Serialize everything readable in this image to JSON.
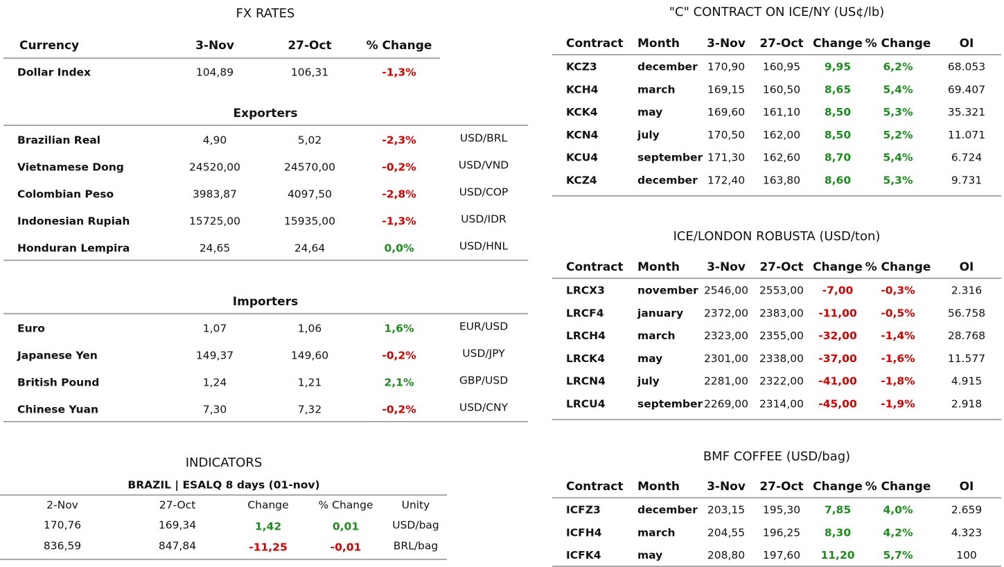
{
  "fx_rates": {
    "title": "FX RATES",
    "header": [
      "Currency",
      "3-Nov",
      "27-Oct",
      "% Change"
    ],
    "dollar_index": [
      "Dollar Index",
      "104,89",
      "106,31",
      "-1,3%"
    ],
    "exporters": {
      "title": "Exporters",
      "rows": [
        [
          "Brazilian Real",
          "4,90",
          "5,02",
          "-2,3%",
          "USD/BRL"
        ],
        [
          "Vietnamese Dong",
          "24520,00",
          "24570,00",
          "-0,2%",
          "USD/VND"
        ],
        [
          "Colombian Peso",
          "3983,87",
          "4097,50",
          "-2,8%",
          "USD/COP"
        ],
        [
          "Indonesian Rupiah",
          "15725,00",
          "15935,00",
          "-1,3%",
          "USD/IDR"
        ],
        [
          "Honduran Lempira",
          "24,65",
          "24,64",
          "0,0%",
          "USD/HNL"
        ]
      ]
    },
    "importers": {
      "title": "Importers",
      "rows": [
        [
          "Euro",
          "1,07",
          "1,06",
          "1,6%",
          "EUR/USD"
        ],
        [
          "Japanese Yen",
          "149,37",
          "149,60",
          "-0,2%",
          "USD/JPY"
        ],
        [
          "British Pound",
          "1,24",
          "1,21",
          "2,1%",
          "GBP/USD"
        ],
        [
          "Chinese Yuan",
          "7,30",
          "7,32",
          "-0,2%",
          "USD/CNY"
        ]
      ]
    }
  },
  "indicators": {
    "title": "INDICATORS",
    "subtitle": "BRAZIL | ESALQ 8 days (01-nov)",
    "header": [
      "2-Nov",
      "27-Oct",
      "Change",
      "% Change",
      "Unity"
    ],
    "rows": [
      [
        "170,76",
        "169,34",
        "1,42",
        "0,01",
        "USD/bag"
      ],
      [
        "836,59",
        "847,84",
        "-11,25",
        "-0,01",
        "BRL/bag"
      ]
    ]
  },
  "futures": [
    {
      "title": "\"C\" CONTRACT ON ICE/NY (US¢/lb)",
      "header": [
        "Contract",
        "Month",
        "3-Nov",
        "27-Oct",
        "Change",
        "% Change",
        "OI"
      ],
      "rows": [
        [
          "KCZ3",
          "december",
          "170,90",
          "160,95",
          "9,95",
          "6,2%",
          "68.053"
        ],
        [
          "KCH4",
          "march",
          "169,15",
          "160,50",
          "8,65",
          "5,4%",
          "69.407"
        ],
        [
          "KCK4",
          "may",
          "169,60",
          "161,10",
          "8,50",
          "5,3%",
          "35.321"
        ],
        [
          "KCN4",
          "july",
          "170,50",
          "162,00",
          "8,50",
          "5,2%",
          "11.071"
        ],
        [
          "KCU4",
          "september",
          "171,30",
          "162,60",
          "8,70",
          "5,4%",
          "6.724"
        ],
        [
          "KCZ4",
          "december",
          "172,40",
          "163,80",
          "8,60",
          "5,3%",
          "9.731"
        ]
      ]
    },
    {
      "title": "ICE/LONDON ROBUSTA (USD/ton)",
      "header": [
        "Contract",
        "Month",
        "3-Nov",
        "27-Oct",
        "Change",
        "% Change",
        "OI"
      ],
      "rows": [
        [
          "LRCX3",
          "november",
          "2546,00",
          "2553,00",
          "-7,00",
          "-0,3%",
          "2.316"
        ],
        [
          "LRCF4",
          "january",
          "2372,00",
          "2383,00",
          "-11,00",
          "-0,5%",
          "56.758"
        ],
        [
          "LRCH4",
          "march",
          "2323,00",
          "2355,00",
          "-32,00",
          "-1,4%",
          "28.768"
        ],
        [
          "LRCK4",
          "may",
          "2301,00",
          "2338,00",
          "-37,00",
          "-1,6%",
          "11.577"
        ],
        [
          "LRCN4",
          "july",
          "2281,00",
          "2322,00",
          "-41,00",
          "-1,8%",
          "4.915"
        ],
        [
          "LRCU4",
          "september",
          "2269,00",
          "2314,00",
          "-45,00",
          "-1,9%",
          "2.918"
        ]
      ]
    },
    {
      "title": "BMF COFFEE (USD/bag)",
      "header": [
        "Contract",
        "Month",
        "3-Nov",
        "27-Oct",
        "Change",
        "% Change",
        "OI"
      ],
      "rows": [
        [
          "ICFZ3",
          "december",
          "203,15",
          "195,30",
          "7,85",
          "4,0%",
          "2.659"
        ],
        [
          "ICFH4",
          "march",
          "204,55",
          "196,25",
          "8,30",
          "4,2%",
          "4.323"
        ],
        [
          "ICFK4",
          "may",
          "208,80",
          "197,60",
          "11,20",
          "5,7%",
          "100"
        ]
      ]
    }
  ]
}
